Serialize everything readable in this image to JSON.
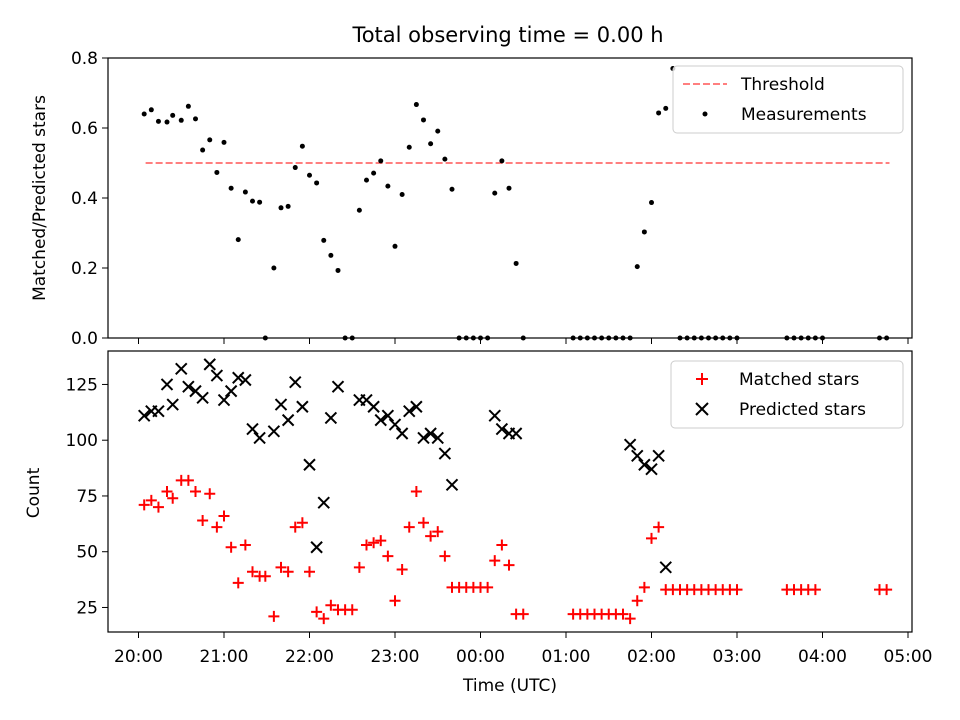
{
  "chart_data": [
    {
      "type": "scatter",
      "title": "Total observing time = 0.00 h",
      "ylabel": "Matched/Predicted stars",
      "xlabel": "",
      "ylim": [
        0,
        0.8
      ],
      "yticks": [
        "0.0",
        "0.2",
        "0.4",
        "0.6",
        "0.8"
      ],
      "legend": {
        "placement": "top-right",
        "entries": [
          "Threshold",
          "Measurements"
        ]
      },
      "threshold": {
        "name": "Threshold",
        "y": 0.5,
        "x_start": "20:05",
        "x_end": "04:47",
        "color": "#ff7f7f",
        "style": "dashed"
      },
      "series": [
        {
          "name": "Measurements",
          "color": "#000000",
          "marker": "dot",
          "points": [
            [
              "20:04",
              0.64
            ],
            [
              "20:09",
              0.652
            ],
            [
              "20:14",
              0.619
            ],
            [
              "20:20",
              0.617
            ],
            [
              "20:24",
              0.636
            ],
            [
              "20:30",
              0.622
            ],
            [
              "20:35",
              0.662
            ],
            [
              "20:40",
              0.626
            ],
            [
              "20:45",
              0.537
            ],
            [
              "20:50",
              0.566
            ],
            [
              "20:55",
              0.473
            ],
            [
              "21:00",
              0.559
            ],
            [
              "21:05",
              0.428
            ],
            [
              "21:10",
              0.281
            ],
            [
              "21:15",
              0.417
            ],
            [
              "21:20",
              0.391
            ],
            [
              "21:25",
              0.388
            ],
            [
              "21:29",
              0.0
            ],
            [
              "21:35",
              0.2
            ],
            [
              "21:40",
              0.372
            ],
            [
              "21:45",
              0.376
            ],
            [
              "21:50",
              0.487
            ],
            [
              "21:55",
              0.548
            ],
            [
              "22:00",
              0.465
            ],
            [
              "22:05",
              0.443
            ],
            [
              "22:10",
              0.279
            ],
            [
              "22:15",
              0.236
            ],
            [
              "22:20",
              0.193
            ],
            [
              "22:25",
              0.0
            ],
            [
              "22:30",
              0.0
            ],
            [
              "22:35",
              0.365
            ],
            [
              "22:40",
              0.451
            ],
            [
              "22:45",
              0.471
            ],
            [
              "22:50",
              0.506
            ],
            [
              "22:55",
              0.434
            ],
            [
              "23:00",
              0.262
            ],
            [
              "23:05",
              0.41
            ],
            [
              "23:10",
              0.545
            ],
            [
              "23:15",
              0.667
            ],
            [
              "23:20",
              0.623
            ],
            [
              "23:25",
              0.555
            ],
            [
              "23:30",
              0.591
            ],
            [
              "23:35",
              0.511
            ],
            [
              "23:40",
              0.425
            ],
            [
              "23:45",
              0.0
            ],
            [
              "23:50",
              0.0
            ],
            [
              "23:55",
              0.0
            ],
            [
              "00:00",
              0.0
            ],
            [
              "00:05",
              0.0
            ],
            [
              "00:10",
              0.414
            ],
            [
              "00:15",
              0.506
            ],
            [
              "00:20",
              0.428
            ],
            [
              "00:25",
              0.213
            ],
            [
              "00:30",
              0.0
            ],
            [
              "01:05",
              0.0
            ],
            [
              "01:10",
              0.0
            ],
            [
              "01:15",
              0.0
            ],
            [
              "01:20",
              0.0
            ],
            [
              "01:25",
              0.0
            ],
            [
              "01:30",
              0.0
            ],
            [
              "01:35",
              0.0
            ],
            [
              "01:40",
              0.0
            ],
            [
              "01:45",
              0.0
            ],
            [
              "01:50",
              0.204
            ],
            [
              "01:55",
              0.303
            ],
            [
              "02:00",
              0.387
            ],
            [
              "02:05",
              0.643
            ],
            [
              "02:10",
              0.656
            ],
            [
              "02:15",
              0.77
            ],
            [
              "02:20",
              0.0
            ],
            [
              "02:25",
              0.0
            ],
            [
              "02:30",
              0.0
            ],
            [
              "02:35",
              0.0
            ],
            [
              "02:40",
              0.0
            ],
            [
              "02:45",
              0.0
            ],
            [
              "02:50",
              0.0
            ],
            [
              "02:55",
              0.0
            ],
            [
              "03:00",
              0.0
            ],
            [
              "03:35",
              0.0
            ],
            [
              "03:40",
              0.0
            ],
            [
              "03:45",
              0.0
            ],
            [
              "03:50",
              0.0
            ],
            [
              "03:55",
              0.0
            ],
            [
              "04:00",
              0.0
            ],
            [
              "04:40",
              0.0
            ],
            [
              "04:45",
              0.0
            ]
          ]
        }
      ]
    },
    {
      "type": "scatter",
      "title": "",
      "xlabel": "Time (UTC)",
      "ylabel": "Count",
      "ylim": [
        14,
        140
      ],
      "yticks": [
        "25",
        "50",
        "75",
        "100",
        "125"
      ],
      "xticks": [
        "20:00",
        "21:00",
        "22:00",
        "23:00",
        "00:00",
        "01:00",
        "02:00",
        "03:00",
        "04:00",
        "05:00"
      ],
      "legend": {
        "placement": "top-right",
        "entries": [
          "Matched stars",
          "Predicted stars"
        ]
      },
      "series": [
        {
          "name": "Matched stars",
          "color": "#ff0000",
          "marker": "plus",
          "points": [
            [
              "20:04",
              71
            ],
            [
              "20:09",
              73
            ],
            [
              "20:14",
              70
            ],
            [
              "20:20",
              77
            ],
            [
              "20:24",
              74
            ],
            [
              "20:30",
              82
            ],
            [
              "20:35",
              82
            ],
            [
              "20:40",
              77
            ],
            [
              "20:45",
              64
            ],
            [
              "20:50",
              76
            ],
            [
              "20:55",
              61
            ],
            [
              "21:00",
              66
            ],
            [
              "21:05",
              52
            ],
            [
              "21:10",
              36
            ],
            [
              "21:15",
              53
            ],
            [
              "21:20",
              41
            ],
            [
              "21:25",
              39
            ],
            [
              "21:29",
              39
            ],
            [
              "21:35",
              21
            ],
            [
              "21:40",
              43
            ],
            [
              "21:45",
              41
            ],
            [
              "21:50",
              61
            ],
            [
              "21:55",
              63
            ],
            [
              "22:00",
              41
            ],
            [
              "22:05",
              23
            ],
            [
              "22:10",
              20
            ],
            [
              "22:15",
              26
            ],
            [
              "22:20",
              24
            ],
            [
              "22:25",
              24
            ],
            [
              "22:30",
              24
            ],
            [
              "22:35",
              43
            ],
            [
              "22:40",
              53
            ],
            [
              "22:45",
              54
            ],
            [
              "22:50",
              55
            ],
            [
              "22:55",
              48
            ],
            [
              "23:00",
              28
            ],
            [
              "23:05",
              42
            ],
            [
              "23:10",
              61
            ],
            [
              "23:15",
              77
            ],
            [
              "23:20",
              63
            ],
            [
              "23:25",
              57
            ],
            [
              "23:30",
              59
            ],
            [
              "23:35",
              48
            ],
            [
              "23:40",
              34
            ],
            [
              "23:45",
              34
            ],
            [
              "23:50",
              34
            ],
            [
              "23:55",
              34
            ],
            [
              "00:00",
              34
            ],
            [
              "00:05",
              34
            ],
            [
              "00:10",
              46
            ],
            [
              "00:15",
              53
            ],
            [
              "00:20",
              44
            ],
            [
              "00:25",
              22
            ],
            [
              "00:30",
              22
            ],
            [
              "01:05",
              22
            ],
            [
              "01:10",
              22
            ],
            [
              "01:15",
              22
            ],
            [
              "01:20",
              22
            ],
            [
              "01:25",
              22
            ],
            [
              "01:30",
              22
            ],
            [
              "01:35",
              22
            ],
            [
              "01:40",
              22
            ],
            [
              "01:45",
              20
            ],
            [
              "01:50",
              28
            ],
            [
              "01:55",
              34
            ],
            [
              "02:00",
              56
            ],
            [
              "02:05",
              61
            ],
            [
              "02:10",
              33
            ],
            [
              "02:15",
              33
            ],
            [
              "02:20",
              33
            ],
            [
              "02:25",
              33
            ],
            [
              "02:30",
              33
            ],
            [
              "02:35",
              33
            ],
            [
              "02:40",
              33
            ],
            [
              "02:45",
              33
            ],
            [
              "02:50",
              33
            ],
            [
              "02:55",
              33
            ],
            [
              "03:00",
              33
            ],
            [
              "03:35",
              33
            ],
            [
              "03:40",
              33
            ],
            [
              "03:45",
              33
            ],
            [
              "03:50",
              33
            ],
            [
              "03:55",
              33
            ],
            [
              "04:40",
              33
            ],
            [
              "04:45",
              33
            ]
          ]
        },
        {
          "name": "Predicted stars",
          "color": "#000000",
          "marker": "x",
          "points": [
            [
              "20:04",
              111
            ],
            [
              "20:09",
              113
            ],
            [
              "20:14",
              113
            ],
            [
              "20:20",
              125
            ],
            [
              "20:24",
              116
            ],
            [
              "20:30",
              132
            ],
            [
              "20:35",
              124
            ],
            [
              "20:40",
              122
            ],
            [
              "20:45",
              119
            ],
            [
              "20:50",
              134
            ],
            [
              "20:55",
              129
            ],
            [
              "21:00",
              118
            ],
            [
              "21:05",
              122
            ],
            [
              "21:10",
              128
            ],
            [
              "21:15",
              127
            ],
            [
              "21:20",
              105
            ],
            [
              "21:25",
              101
            ],
            [
              "21:35",
              104
            ],
            [
              "21:40",
              116
            ],
            [
              "21:45",
              109
            ],
            [
              "21:50",
              126
            ],
            [
              "21:55",
              115
            ],
            [
              "22:00",
              89
            ],
            [
              "22:05",
              52
            ],
            [
              "22:10",
              72
            ],
            [
              "22:15",
              110
            ],
            [
              "22:20",
              124
            ],
            [
              "22:35",
              118
            ],
            [
              "22:40",
              118
            ],
            [
              "22:45",
              115
            ],
            [
              "22:50",
              109
            ],
            [
              "22:55",
              111
            ],
            [
              "23:00",
              107
            ],
            [
              "23:05",
              103
            ],
            [
              "23:10",
              113
            ],
            [
              "23:15",
              115
            ],
            [
              "23:20",
              101
            ],
            [
              "23:25",
              103
            ],
            [
              "23:30",
              101
            ],
            [
              "23:35",
              94
            ],
            [
              "23:40",
              80
            ],
            [
              "00:10",
              111
            ],
            [
              "00:15",
              105
            ],
            [
              "00:20",
              103
            ],
            [
              "00:25",
              103
            ],
            [
              "01:45",
              98
            ],
            [
              "01:50",
              93
            ],
            [
              "01:55",
              89
            ],
            [
              "02:00",
              87
            ],
            [
              "02:05",
              93
            ],
            [
              "02:10",
              43
            ]
          ]
        }
      ]
    }
  ]
}
